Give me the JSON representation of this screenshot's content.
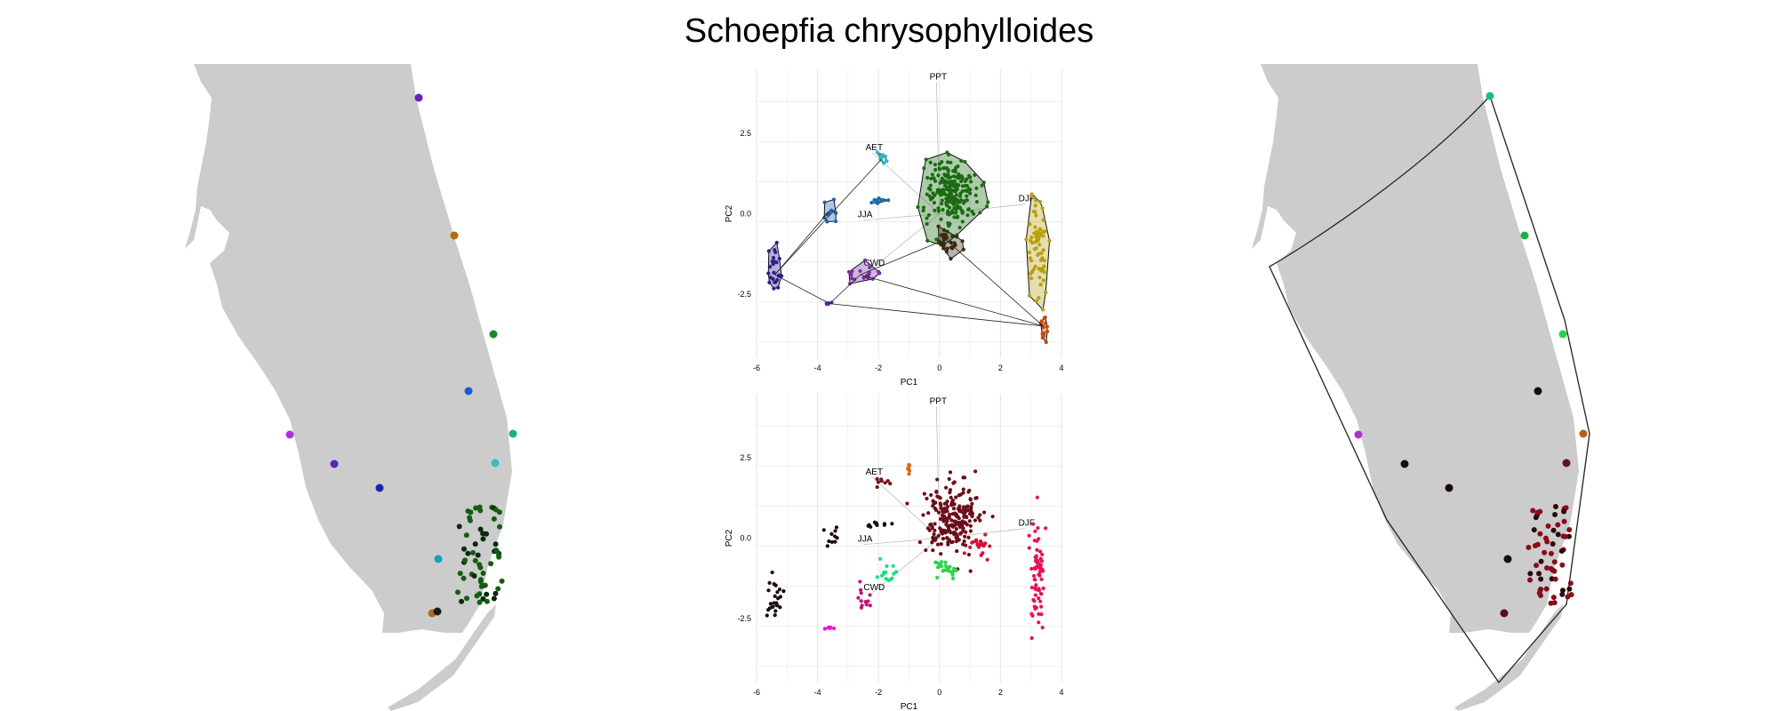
{
  "title": "Schoepfia chrysophylloides",
  "colors": {
    "land": "#cccccc",
    "grid": "#e6e6e6",
    "arrow": "#bdbdbd"
  },
  "chart_data": [
    {
      "type": "scatter",
      "xlabel": "PC1",
      "ylabel": "PC2",
      "xlim": [
        -6,
        4
      ],
      "ylim": [
        -4.5,
        4.5
      ],
      "x_ticks": [
        "-6",
        "-4",
        "-2",
        "0",
        "2",
        "4"
      ],
      "y_ticks": [
        "2.5",
        "0.0",
        "-2.5"
      ],
      "loadings": [
        {
          "label": "PPT",
          "x": -0.1,
          "y": 4.1
        },
        {
          "label": "AET",
          "x": -2.2,
          "y": 1.9
        },
        {
          "label": "DJF",
          "x": 2.8,
          "y": 0.3
        },
        {
          "label": "JJA",
          "x": -2.5,
          "y": -0.2
        },
        {
          "label": "CWD",
          "x": -2.2,
          "y": -1.7
        }
      ],
      "clusters": [
        {
          "cx": 0.4,
          "cy": 0.7,
          "sx": 0.7,
          "sy": 0.9,
          "n": 220,
          "color": "#1a6b12",
          "hull": true
        },
        {
          "cx": 3.2,
          "cy": -1.2,
          "sx": 0.25,
          "sy": 1.4,
          "n": 70,
          "color": "#b7a012",
          "hull": true
        },
        {
          "cx": 3.4,
          "cy": -3.5,
          "sx": 0.15,
          "sy": 0.5,
          "n": 14,
          "color": "#c24a12",
          "hull": true
        },
        {
          "cx": -1.9,
          "cy": 1.7,
          "sx": 0.2,
          "sy": 0.15,
          "n": 8,
          "color": "#2fb8bf",
          "hull": true
        },
        {
          "cx": -2.0,
          "cy": 0.4,
          "sx": 0.25,
          "sy": 0.1,
          "n": 10,
          "color": "#1a6fb0",
          "hull": true
        },
        {
          "cx": -3.6,
          "cy": 0.1,
          "sx": 0.2,
          "sy": 0.3,
          "n": 10,
          "color": "#1f5ea8",
          "hull": true
        },
        {
          "cx": -5.4,
          "cy": -1.9,
          "sx": 0.2,
          "sy": 0.7,
          "n": 24,
          "color": "#2a1f8a",
          "hull": true
        },
        {
          "cx": -3.6,
          "cy": -2.8,
          "sx": 0.1,
          "sy": 0.05,
          "n": 6,
          "color": "#6a1fbf",
          "hull": true
        },
        {
          "cx": -2.6,
          "cy": -1.9,
          "sx": 0.5,
          "sy": 0.3,
          "n": 18,
          "color": "#7a2aa8",
          "hull": true
        },
        {
          "cx": 0.2,
          "cy": -0.8,
          "sx": 0.4,
          "sy": 0.3,
          "n": 30,
          "color": "#3a2a12",
          "hull": true
        }
      ]
    },
    {
      "type": "scatter",
      "xlabel": "PC1",
      "ylabel": "PC2",
      "xlim": [
        -6,
        4
      ],
      "ylim": [
        -4.5,
        4.5
      ],
      "x_ticks": [
        "-6",
        "-4",
        "-2",
        "0",
        "2",
        "4"
      ],
      "y_ticks": [
        "2.5",
        "0.0",
        "-2.5"
      ],
      "loadings": [
        {
          "label": "PPT",
          "x": -0.1,
          "y": 4.1
        },
        {
          "label": "AET",
          "x": -2.2,
          "y": 1.9
        },
        {
          "label": "DJF",
          "x": 2.8,
          "y": 0.3
        },
        {
          "label": "JJA",
          "x": -2.5,
          "y": -0.2
        },
        {
          "label": "CWD",
          "x": -2.2,
          "y": -1.7
        }
      ],
      "clusters": [
        {
          "cx": 0.4,
          "cy": 0.7,
          "sx": 0.7,
          "sy": 0.9,
          "n": 220,
          "color": "#6b0f1a",
          "hull": false
        },
        {
          "cx": 3.2,
          "cy": -1.2,
          "sx": 0.25,
          "sy": 1.4,
          "n": 70,
          "color": "#e8115a",
          "hull": false
        },
        {
          "cx": -1.9,
          "cy": 1.7,
          "sx": 0.2,
          "sy": 0.15,
          "n": 8,
          "color": "#7a1414",
          "hull": false
        },
        {
          "cx": -1.0,
          "cy": 2.2,
          "sx": 0.1,
          "sy": 0.2,
          "n": 6,
          "color": "#d46a12",
          "hull": false
        },
        {
          "cx": -2.0,
          "cy": 0.4,
          "sx": 0.25,
          "sy": 0.1,
          "n": 10,
          "color": "#1a0a0a",
          "hull": false
        },
        {
          "cx": -3.6,
          "cy": 0.1,
          "sx": 0.2,
          "sy": 0.3,
          "n": 10,
          "color": "#1a0a0a",
          "hull": false
        },
        {
          "cx": -5.4,
          "cy": -1.9,
          "sx": 0.2,
          "sy": 0.7,
          "n": 24,
          "color": "#1a0a0a",
          "hull": false
        },
        {
          "cx": -3.6,
          "cy": -2.8,
          "sx": 0.1,
          "sy": 0.05,
          "n": 6,
          "color": "#e812e0",
          "hull": false
        },
        {
          "cx": -1.7,
          "cy": -1.1,
          "sx": 0.3,
          "sy": 0.3,
          "n": 14,
          "color": "#19e07a",
          "hull": false
        },
        {
          "cx": -2.5,
          "cy": -1.9,
          "sx": 0.3,
          "sy": 0.4,
          "n": 12,
          "color": "#c2127a",
          "hull": false
        },
        {
          "cx": 0.2,
          "cy": -1.0,
          "sx": 0.4,
          "sy": 0.25,
          "n": 24,
          "color": "#2bd44a",
          "hull": false
        },
        {
          "cx": 1.3,
          "cy": -0.2,
          "sx": 0.3,
          "sy": 0.4,
          "n": 20,
          "color": "#d4123a",
          "hull": false
        }
      ]
    }
  ]
}
